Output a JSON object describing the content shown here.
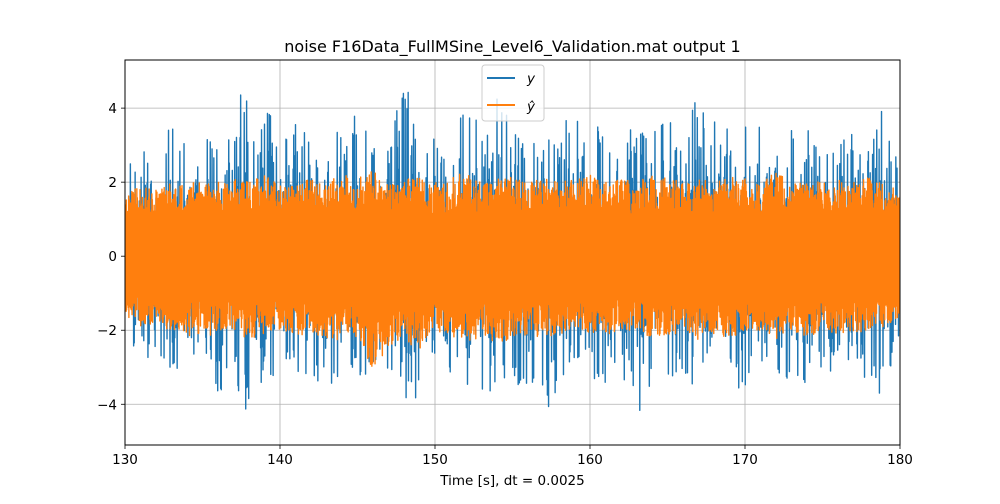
{
  "chart_data": {
    "type": "line",
    "title": "noise F16Data_FullMSine_Level6_Validation.mat output 1",
    "xlabel": "Time [s], dt = 0.0025",
    "ylabel": "",
    "xlim": [
      130,
      180
    ],
    "ylim": [
      -5.1,
      5.3
    ],
    "x_ticks": [
      130,
      140,
      150,
      160,
      170,
      180
    ],
    "x_tick_labels": [
      "130",
      "140",
      "150",
      "160",
      "170",
      "180"
    ],
    "y_ticks": [
      -4,
      -2,
      0,
      2,
      4
    ],
    "y_tick_labels": [
      "−4",
      "−2",
      "0",
      "2",
      "4"
    ],
    "grid": true,
    "legend": {
      "placement": "top-center"
    },
    "series": [
      {
        "name": "y",
        "color": "#1f77b4",
        "x": [
          130,
          131,
          132,
          133,
          134,
          135,
          136,
          137,
          137.5,
          138,
          139,
          140,
          141,
          142,
          142.8,
          143,
          144,
          145,
          145.8,
          146,
          147,
          148,
          148.2,
          149,
          150,
          151,
          152,
          153,
          154,
          155,
          156,
          157,
          157.6,
          158,
          159,
          160,
          161,
          162,
          163,
          163.3,
          164,
          165,
          166,
          167,
          168,
          169,
          170,
          171,
          172,
          173,
          174,
          175,
          176,
          177,
          178,
          179,
          180
        ],
        "values": [
          2.4,
          3.1,
          2.7,
          3.7,
          2.9,
          3.5,
          3.2,
          3.9,
          4.6,
          4.1,
          4.4,
          3.0,
          3.7,
          3.4,
          3.2,
          3.0,
          3.6,
          3.9,
          3.2,
          3.0,
          3.7,
          4.6,
          4.7,
          3.9,
          3.1,
          3.5,
          4.0,
          4.1,
          4.3,
          3.8,
          3.0,
          3.6,
          3.3,
          4.0,
          3.7,
          3.9,
          3.2,
          3.3,
          3.7,
          3.6,
          3.4,
          3.8,
          3.4,
          4.5,
          4.0,
          3.4,
          3.7,
          3.5,
          3.2,
          3.4,
          3.5,
          3.2,
          3.3,
          3.5,
          3.4,
          4.3,
          2.5
        ],
        "lows": [
          -2.5,
          -3.0,
          -2.9,
          -3.8,
          -3.2,
          -2.9,
          -3.8,
          -3.7,
          -4.2,
          -4.1,
          -3.5,
          -3.0,
          -3.3,
          -3.8,
          -4.5,
          -3.7,
          -3.6,
          -3.2,
          -3.3,
          -3.1,
          -3.4,
          -3.6,
          -4.1,
          -3.7,
          -2.9,
          -3.2,
          -3.5,
          -3.9,
          -3.5,
          -3.7,
          -3.6,
          -3.9,
          -4.3,
          -3.4,
          -3.6,
          -3.2,
          -3.9,
          -3.4,
          -3.8,
          -4.4,
          -3.5,
          -3.4,
          -3.2,
          -3.9,
          -3.0,
          -3.5,
          -3.7,
          -2.9,
          -3.1,
          -3.4,
          -3.5,
          -3.0,
          -3.3,
          -3.0,
          -4.2,
          -3.5,
          -2.2
        ]
      },
      {
        "name": "ŷ",
        "color": "#ff7f0e",
        "x": [
          130,
          131,
          132,
          133,
          134,
          135,
          136,
          137,
          138,
          139,
          140,
          141,
          142,
          143,
          144,
          145,
          146,
          147,
          148,
          149,
          150,
          151,
          152,
          153,
          154,
          155,
          156,
          157,
          158,
          159,
          160,
          161,
          162,
          163,
          164,
          165,
          166,
          167,
          168,
          169,
          170,
          171,
          172,
          173,
          174,
          175,
          176,
          177,
          178,
          179,
          180
        ],
        "values": [
          1.7,
          1.9,
          1.8,
          2.0,
          1.9,
          2.1,
          2.0,
          2.1,
          2.0,
          2.2,
          1.9,
          2.0,
          2.1,
          2.0,
          2.2,
          2.1,
          2.3,
          2.0,
          2.2,
          2.1,
          2.0,
          2.1,
          2.3,
          2.0,
          2.1,
          2.2,
          2.0,
          2.1,
          2.0,
          2.1,
          2.2,
          2.0,
          2.1,
          2.0,
          2.2,
          2.1,
          2.0,
          2.1,
          2.0,
          2.2,
          2.1,
          2.0,
          2.3,
          2.0,
          2.1,
          2.0,
          2.1,
          2.0,
          2.2,
          1.9,
          1.8
        ],
        "lows": [
          -1.6,
          -1.9,
          -2.0,
          -2.0,
          -2.2,
          -2.1,
          -2.2,
          -2.0,
          -2.3,
          -2.1,
          -2.0,
          -2.2,
          -2.1,
          -2.2,
          -2.3,
          -2.2,
          -3.2,
          -2.4,
          -2.3,
          -2.5,
          -2.1,
          -2.2,
          -2.3,
          -2.2,
          -2.4,
          -2.2,
          -2.3,
          -2.1,
          -2.2,
          -2.0,
          -2.1,
          -2.2,
          -2.0,
          -2.1,
          -2.3,
          -2.2,
          -2.0,
          -2.3,
          -2.1,
          -2.2,
          -2.1,
          -2.0,
          -2.3,
          -2.1,
          -2.2,
          -2.0,
          -2.1,
          -2.2,
          -2.0,
          -1.9,
          -1.7
        ]
      }
    ]
  }
}
